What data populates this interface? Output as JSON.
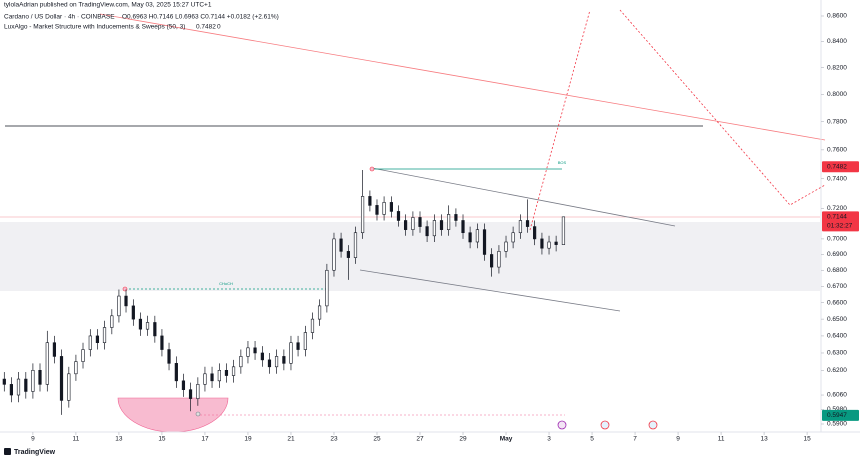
{
  "chart_data": {
    "type": "candlestick",
    "publisher": "tylolaAdrian published on TradingView.com, May 03, 2025 15:27 UTC+1",
    "symbol": "Cardano / US Dollar · 4h · COINBASE",
    "ohlc_text": "O0.6963 H0.7146 L0.6963 C0.7144 +0.0182 (+2.61%)",
    "indicator": "LuxAlgo - Market Structure with Inducements & Sweeps (50, 3)",
    "indicator_values": [
      "0.7482",
      "0"
    ],
    "annotations": [
      "BOS",
      "CHoCH"
    ],
    "countdown": "01:32:27",
    "logo": "TradingView",
    "log_scale": true,
    "grid": false,
    "up_color": "#ffffff",
    "down_color": "#131722",
    "x": [
      7.67,
      8,
      8.33,
      8.67,
      9,
      9.33,
      9.67,
      10,
      10.33,
      10.67,
      11,
      11.33,
      11.67,
      12,
      12.33,
      12.67,
      13,
      13.33,
      13.67,
      14,
      14.33,
      14.67,
      15,
      15.33,
      15.67,
      16,
      16.33,
      16.67,
      17,
      17.33,
      17.67,
      18,
      18.33,
      18.67,
      19,
      19.33,
      19.67,
      20,
      20.33,
      20.67,
      21,
      21.33,
      21.67,
      22,
      22.33,
      22.67,
      23,
      23.33,
      23.67,
      24,
      24.33,
      24.67,
      25,
      25.33,
      25.67,
      26,
      26.33,
      26.67,
      27,
      27.33,
      27.67,
      28,
      28.33,
      28.67,
      29,
      29.33,
      29.67,
      30,
      30.33,
      30.67,
      31,
      31.33,
      31.67,
      32,
      32.33,
      32.67,
      33,
      33.33,
      33.67
    ],
    "open": [
      0.615,
      0.612,
      0.606,
      0.615,
      0.608,
      0.62,
      0.612,
      0.636,
      0.628,
      0.603,
      0.618,
      0.625,
      0.632,
      0.64,
      0.636,
      0.645,
      0.652,
      0.664,
      0.658,
      0.65,
      0.644,
      0.648,
      0.64,
      0.632,
      0.624,
      0.614,
      0.609,
      0.604,
      0.612,
      0.618,
      0.614,
      0.62,
      0.617,
      0.622,
      0.628,
      0.633,
      0.63,
      0.626,
      0.622,
      0.628,
      0.624,
      0.636,
      0.632,
      0.642,
      0.65,
      0.658,
      0.68,
      0.7,
      0.692,
      0.688,
      0.704,
      0.728,
      0.722,
      0.716,
      0.724,
      0.718,
      0.712,
      0.706,
      0.714,
      0.708,
      0.702,
      0.712,
      0.706,
      0.716,
      0.712,
      0.704,
      0.698,
      0.706,
      0.69,
      0.682,
      0.692,
      0.698,
      0.704,
      0.712,
      0.708,
      0.7,
      0.694,
      0.698,
      0.6963
    ],
    "high": [
      0.619,
      0.616,
      0.619,
      0.619,
      0.624,
      0.624,
      0.643,
      0.64,
      0.632,
      0.622,
      0.629,
      0.636,
      0.644,
      0.644,
      0.649,
      0.656,
      0.668,
      0.668,
      0.662,
      0.654,
      0.652,
      0.652,
      0.644,
      0.636,
      0.628,
      0.618,
      0.613,
      0.616,
      0.622,
      0.622,
      0.624,
      0.624,
      0.626,
      0.632,
      0.637,
      0.637,
      0.634,
      0.63,
      0.632,
      0.632,
      0.64,
      0.64,
      0.646,
      0.654,
      0.662,
      0.684,
      0.704,
      0.704,
      0.696,
      0.708,
      0.746,
      0.732,
      0.726,
      0.728,
      0.728,
      0.722,
      0.716,
      0.718,
      0.718,
      0.712,
      0.716,
      0.716,
      0.722,
      0.72,
      0.716,
      0.708,
      0.71,
      0.71,
      0.694,
      0.696,
      0.702,
      0.708,
      0.716,
      0.726,
      0.712,
      0.704,
      0.702,
      0.702,
      0.7146
    ],
    "low": [
      0.608,
      0.602,
      0.602,
      0.604,
      0.604,
      0.608,
      0.608,
      0.624,
      0.595,
      0.599,
      0.614,
      0.621,
      0.628,
      0.632,
      0.632,
      0.641,
      0.648,
      0.654,
      0.646,
      0.64,
      0.64,
      0.636,
      0.628,
      0.62,
      0.61,
      0.605,
      0.597,
      0.6,
      0.608,
      0.61,
      0.61,
      0.613,
      0.613,
      0.618,
      0.624,
      0.626,
      0.622,
      0.618,
      0.618,
      0.62,
      0.62,
      0.628,
      0.628,
      0.638,
      0.646,
      0.654,
      0.676,
      0.688,
      0.674,
      0.684,
      0.7,
      0.718,
      0.712,
      0.712,
      0.714,
      0.708,
      0.702,
      0.702,
      0.704,
      0.698,
      0.698,
      0.702,
      0.702,
      0.708,
      0.7,
      0.694,
      0.694,
      0.686,
      0.676,
      0.678,
      0.688,
      0.694,
      0.7,
      0.704,
      0.696,
      0.69,
      0.69,
      0.692,
      0.6963
    ],
    "close": [
      0.612,
      0.606,
      0.615,
      0.608,
      0.62,
      0.612,
      0.636,
      0.628,
      0.603,
      0.618,
      0.625,
      0.632,
      0.64,
      0.636,
      0.645,
      0.652,
      0.664,
      0.658,
      0.65,
      0.644,
      0.648,
      0.64,
      0.632,
      0.624,
      0.614,
      0.609,
      0.604,
      0.612,
      0.618,
      0.614,
      0.62,
      0.617,
      0.622,
      0.628,
      0.633,
      0.63,
      0.626,
      0.622,
      0.628,
      0.624,
      0.636,
      0.632,
      0.642,
      0.65,
      0.658,
      0.68,
      0.7,
      0.692,
      0.688,
      0.704,
      0.728,
      0.722,
      0.716,
      0.724,
      0.718,
      0.712,
      0.706,
      0.714,
      0.708,
      0.702,
      0.712,
      0.706,
      0.716,
      0.712,
      0.704,
      0.698,
      0.706,
      0.69,
      0.682,
      0.692,
      0.698,
      0.704,
      0.712,
      0.708,
      0.7,
      0.694,
      0.698,
      0.6963,
      0.7144
    ],
    "xlim": [
      7.47,
      45.6
    ],
    "xticks": [
      9,
      11,
      13,
      15,
      17,
      19,
      21,
      23,
      25,
      27,
      29,
      {
        "value": 31,
        "label": "May"
      },
      {
        "value": 33,
        "label": "3"
      },
      {
        "value": 35,
        "label": "5"
      },
      {
        "value": 37,
        "label": "7"
      },
      {
        "value": 39,
        "label": "9"
      },
      {
        "value": 41,
        "label": "11"
      },
      {
        "value": 43,
        "label": "13"
      },
      {
        "value": 45,
        "label": "15"
      }
    ],
    "ylim": [
      0.59,
      0.86
    ],
    "yticks": [
      {
        "value": 0.86,
        "label": "0.8600"
      },
      {
        "value": 0.84,
        "label": "0.8400"
      },
      {
        "value": 0.82,
        "label": "0.8200"
      },
      {
        "value": 0.8,
        "label": "0.8000"
      },
      {
        "value": 0.78,
        "label": "0.7800"
      },
      {
        "value": 0.76,
        "label": "0.7600"
      },
      {
        "value": 0.74,
        "label": "0.7400"
      },
      {
        "value": 0.72,
        "label": "0.7200"
      },
      {
        "value": 0.7,
        "label": "0.7000"
      },
      {
        "value": 0.69,
        "label": "0.6900"
      },
      {
        "value": 0.68,
        "label": "0.6800"
      },
      {
        "value": 0.67,
        "label": "0.6700"
      },
      {
        "value": 0.66,
        "label": "0.6600"
      },
      {
        "value": 0.65,
        "label": "0.6500"
      },
      {
        "value": 0.64,
        "label": "0.6400"
      },
      {
        "value": 0.63,
        "label": "0.6300"
      },
      {
        "value": 0.62,
        "label": "0.6200"
      },
      {
        "value": 0.606,
        "label": "0.6060"
      },
      {
        "value": 0.598,
        "label": "0.5980"
      },
      {
        "value": 0.59,
        "label": "0.5900"
      }
    ],
    "price_labels": [
      {
        "value": 0.7482,
        "color": "#f23645"
      },
      {
        "value": 0.7144,
        "color": "#f23645"
      },
      {
        "value": 0.5947,
        "color": "#089981"
      }
    ]
  }
}
